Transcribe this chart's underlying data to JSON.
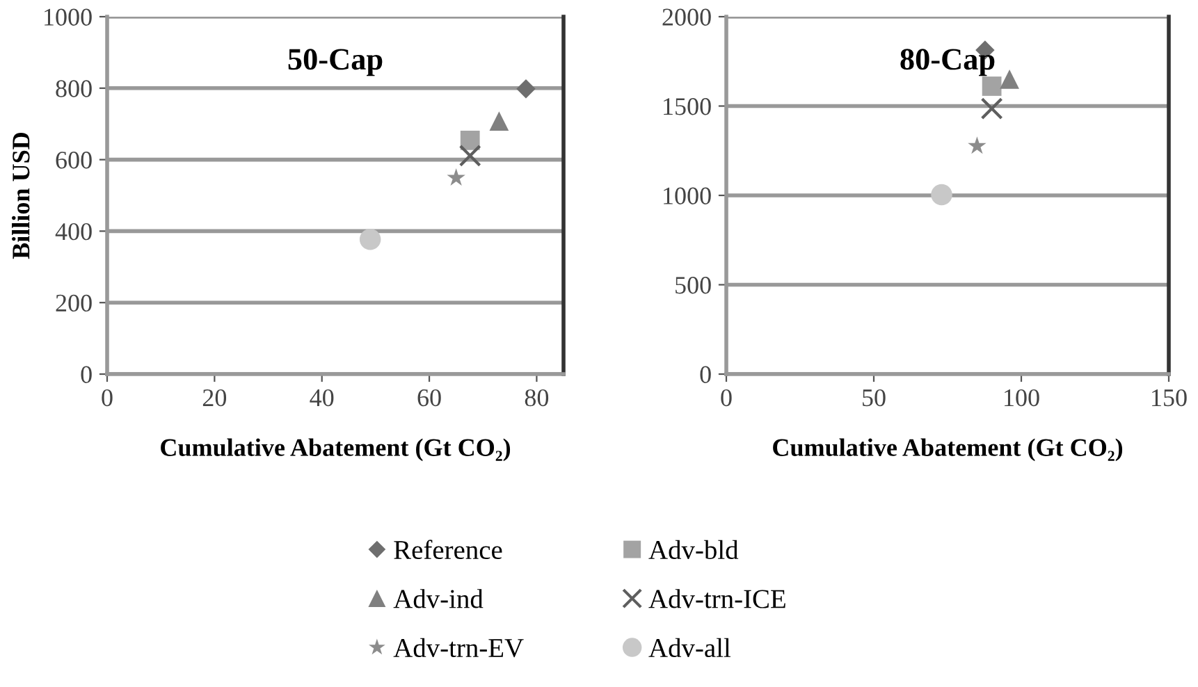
{
  "chart_data": [
    {
      "type": "scatter",
      "title": "50-Cap",
      "xlabel": "Cumulative Abatement (Gt CO₂)",
      "ylabel": "Billion USD",
      "xlim": [
        0,
        85
      ],
      "xticks": [
        0,
        20,
        40,
        60,
        80
      ],
      "ylim": [
        0,
        1000
      ],
      "yticks": [
        0,
        200,
        400,
        600,
        800,
        1000
      ],
      "grid": "y",
      "legend": "bottom",
      "series": [
        {
          "name": "Reference",
          "color": "#6e6e6e",
          "marker": "diamond",
          "x": [
            78
          ],
          "values": [
            798
          ]
        },
        {
          "name": "Adv-bld",
          "color": "#a3a3a3",
          "marker": "square",
          "x": [
            67.6
          ],
          "values": [
            654
          ]
        },
        {
          "name": "Adv-ind",
          "color": "#808080",
          "marker": "triangle",
          "x": [
            73
          ],
          "values": [
            708
          ]
        },
        {
          "name": "Adv-trn-ICE",
          "color": "#5e5e5e",
          "marker": "cross",
          "x": [
            67.6
          ],
          "values": [
            611
          ]
        },
        {
          "name": "Adv-trn-EV",
          "color": "#8c8c8c",
          "marker": "star",
          "x": [
            65
          ],
          "values": [
            549
          ]
        },
        {
          "name": "Adv-all",
          "color": "#c8c8c8",
          "marker": "circle",
          "x": [
            49
          ],
          "values": [
            377
          ]
        }
      ]
    },
    {
      "type": "scatter",
      "title": "80-Cap",
      "xlabel": "Cumulative Abatement (Gt CO₂)",
      "xlim": [
        0,
        150
      ],
      "xticks": [
        0,
        50,
        100,
        150
      ],
      "ylim": [
        0,
        2000
      ],
      "yticks": [
        0,
        500,
        1000,
        1500,
        2000
      ],
      "grid": "y",
      "series": [
        {
          "color": "#6e6e6e",
          "marker": "diamond",
          "x": [
            87.7
          ],
          "values": [
            1813
          ]
        },
        {
          "color": "#a3a3a3",
          "marker": "square",
          "x": [
            90
          ],
          "values": [
            1611
          ]
        },
        {
          "color": "#808080",
          "marker": "triangle",
          "x": [
            96
          ],
          "values": [
            1650
          ]
        },
        {
          "color": "#5e5e5e",
          "marker": "cross",
          "x": [
            90
          ],
          "values": [
            1486
          ]
        },
        {
          "color": "#8c8c8c",
          "marker": "star",
          "x": [
            85
          ],
          "values": [
            1276
          ]
        },
        {
          "color": "#c8c8c8",
          "marker": "circle",
          "x": [
            73
          ],
          "values": [
            1004
          ]
        }
      ]
    }
  ]
}
